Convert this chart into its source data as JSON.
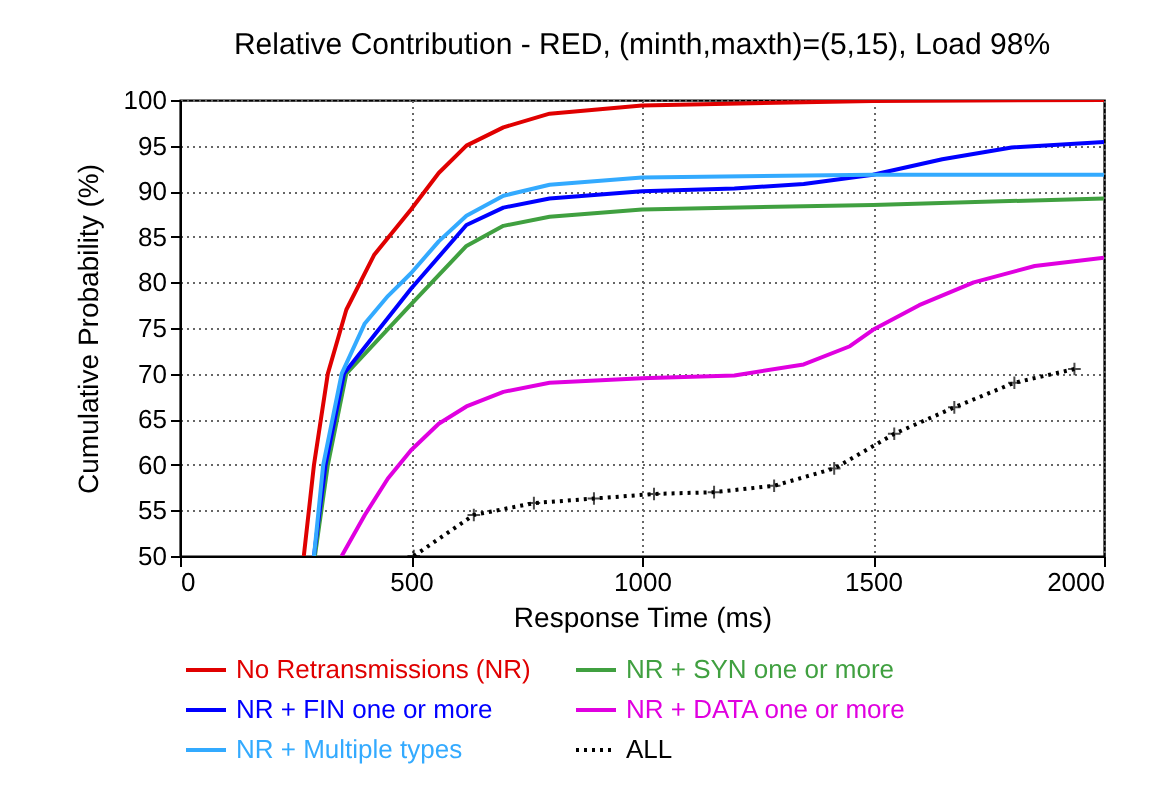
{
  "chart_data": {
    "type": "line",
    "title": "Relative Contribution - RED, (minth,maxth)=(5,15), Load 98%",
    "xlabel": "Response Time (ms)",
    "ylabel": "Cumulative Probability (%)",
    "xlim": [
      0,
      2000
    ],
    "xticks": [
      0,
      500,
      1000,
      1500,
      2000
    ],
    "ylim": [
      50,
      100
    ],
    "yticks": [
      50,
      55,
      60,
      65,
      70,
      75,
      80,
      85,
      90,
      95,
      100
    ],
    "grid": true,
    "legend": "bottom",
    "line_style": "solid",
    "series": [
      {
        "name": "No Retransmissions (NR)",
        "color": "#e00000",
        "x": [
          268,
          290,
          320,
          360,
          420,
          500,
          560,
          620,
          700,
          800,
          1000,
          1500,
          2000
        ],
        "values": [
          50,
          60,
          70,
          77,
          83,
          88,
          92,
          95,
          97,
          98.5,
          99.4,
          99.9,
          100
        ]
      },
      {
        "name": "NR + SYN one or more",
        "color": "#40a040",
        "x": [
          292,
          320,
          360,
          500,
          620,
          700,
          800,
          1000,
          1500,
          2000
        ],
        "values": [
          50,
          60,
          70,
          77.6,
          84,
          86.2,
          87.2,
          88,
          88.5,
          89.2
        ]
      },
      {
        "name": "NR + FIN one or more",
        "color": "#0000ff",
        "x": [
          290,
          315,
          355,
          500,
          620,
          700,
          800,
          1000,
          1200,
          1350,
          1500,
          1650,
          1800,
          2000
        ],
        "values": [
          50,
          60,
          70,
          79.3,
          86.3,
          88.2,
          89.2,
          90,
          90.3,
          90.8,
          91.8,
          93.5,
          94.8,
          95.4
        ]
      },
      {
        "name": "NR + DATA one or more",
        "color": "#e000e0",
        "x": [
          350,
          400,
          450,
          500,
          560,
          620,
          700,
          800,
          1000,
          1200,
          1350,
          1450,
          1500,
          1600,
          1718,
          1850,
          2000
        ],
        "values": [
          50,
          54.5,
          58.5,
          61.6,
          64.5,
          66.4,
          68,
          69,
          69.5,
          69.8,
          71,
          73,
          74.8,
          77.5,
          80,
          81.8,
          82.7
        ]
      },
      {
        "name": "NR + Multiple types",
        "color": "#33aaff",
        "x": [
          290,
          310,
          350,
          400,
          450,
          500,
          560,
          620,
          700,
          800,
          1000,
          1500,
          2000
        ],
        "values": [
          50,
          60,
          70,
          75.5,
          78.5,
          81,
          84.5,
          87.3,
          89.5,
          90.7,
          91.5,
          91.8,
          91.8
        ]
      },
      {
        "name": "ALL",
        "color": "#000000",
        "line_style": "dotted",
        "marker": "cross",
        "x": [
          506,
          636,
          766,
          896,
          1026,
          1156,
          1286,
          1416,
          1546,
          1676,
          1806,
          1936
        ],
        "values": [
          50,
          54.5,
          55.8,
          56.3,
          56.8,
          57,
          57.7,
          59.6,
          63.4,
          66.3,
          69,
          70.5
        ]
      }
    ]
  }
}
